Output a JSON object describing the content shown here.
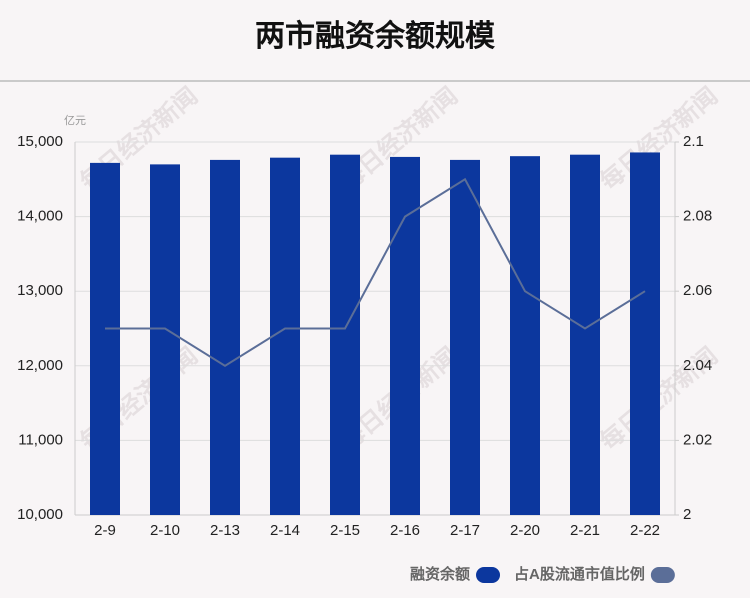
{
  "chart_data": {
    "type": "bar-line",
    "title": "两市融资余额规模",
    "y_unit": "亿元",
    "watermark": "每日经济新闻",
    "categories": [
      "2-9",
      "2-10",
      "2-13",
      "2-14",
      "2-15",
      "2-16",
      "2-17",
      "2-20",
      "2-21",
      "2-22"
    ],
    "series": [
      {
        "name": "融资余额",
        "type": "bar",
        "color": "#0c379e",
        "values": [
          14720,
          14700,
          14760,
          14790,
          14830,
          14800,
          14760,
          14810,
          14830,
          14860
        ]
      },
      {
        "name": "占A股流通市值比例",
        "type": "line",
        "axis": "y2",
        "color": "#5b6e98",
        "values": [
          2.05,
          2.05,
          2.04,
          2.05,
          2.05,
          2.08,
          2.09,
          2.06,
          2.05,
          2.06
        ]
      }
    ],
    "ylim": [
      10000,
      15000
    ],
    "yticks": [
      {
        "value": 10000,
        "label": "10,000"
      },
      {
        "value": 11000,
        "label": "11,000"
      },
      {
        "value": 12000,
        "label": "12,000"
      },
      {
        "value": 13000,
        "label": "13,000"
      },
      {
        "value": 14000,
        "label": "14,000"
      },
      {
        "value": 15000,
        "label": "15,000"
      }
    ],
    "y2lim": [
      2,
      2.1
    ],
    "y2ticks": [
      2,
      2.02,
      2.04,
      2.06,
      2.08,
      2.1
    ],
    "grid": true,
    "legend": "bottom-right"
  }
}
